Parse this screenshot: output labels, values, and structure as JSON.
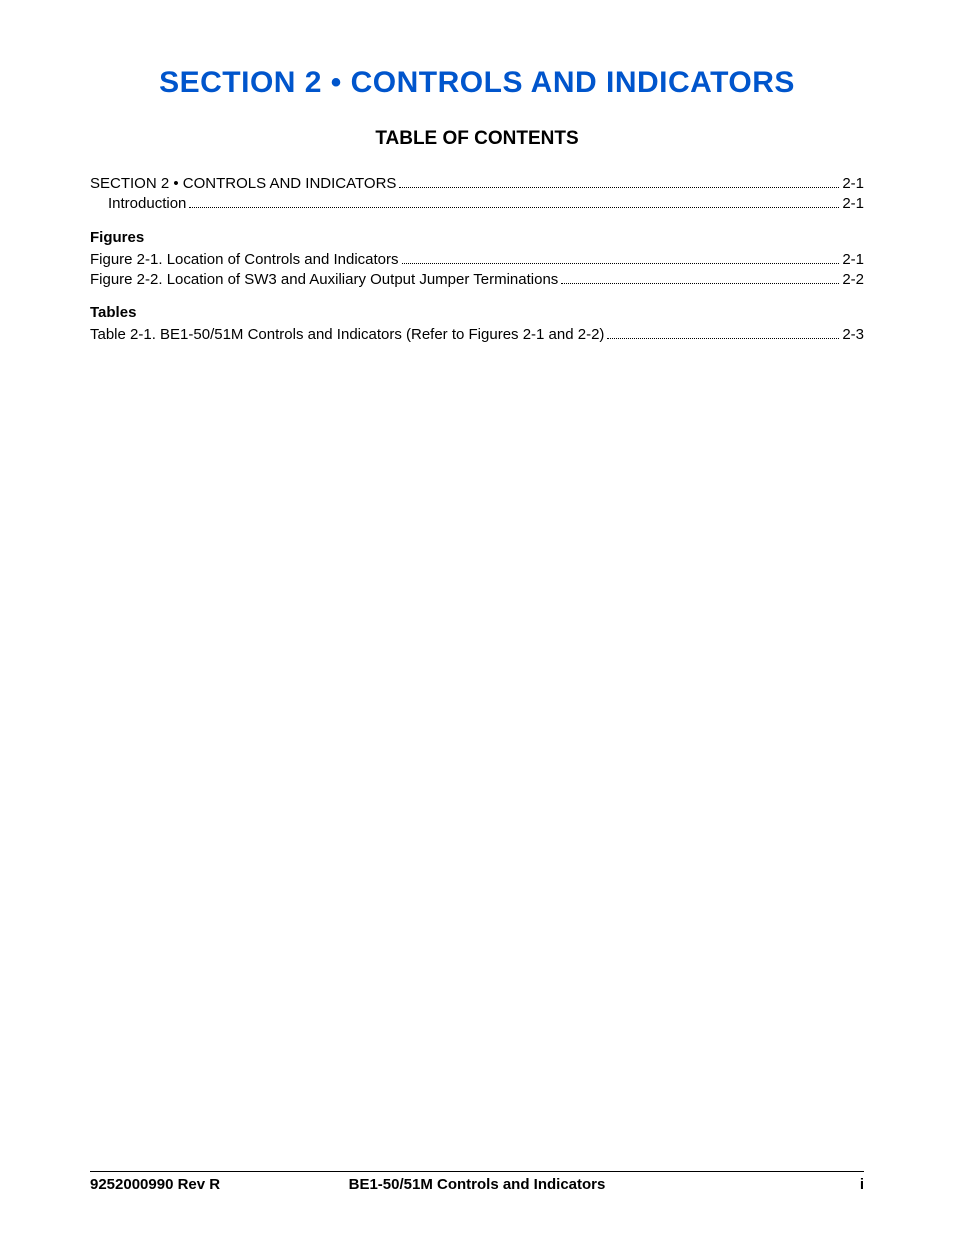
{
  "colors": {
    "title_color": "#0055cc",
    "text_color": "#000000",
    "background": "#ffffff",
    "rule_color": "#000000"
  },
  "typography": {
    "font_family": "Arial, Helvetica, sans-serif",
    "section_title_size_pt": 22,
    "toc_title_size_pt": 14,
    "body_size_pt": 11,
    "subheading_size_pt": 11,
    "footer_size_pt": 11
  },
  "section_title": "SECTION 2 • CONTROLS AND INDICATORS",
  "toc_title": "TABLE OF CONTENTS",
  "toc": {
    "main": [
      {
        "label": "SECTION 2 • CONTROLS AND INDICATORS",
        "page": "2-1",
        "indent": 0
      },
      {
        "label": "Introduction",
        "page": "2-1",
        "indent": 1
      }
    ],
    "figures_heading": "Figures",
    "figures": [
      {
        "label": "Figure 2-1. Location of Controls and Indicators",
        "page": "2-1",
        "indent": 0
      },
      {
        "label": "Figure 2-2. Location of SW3 and Auxiliary Output Jumper Terminations",
        "page": "2-2",
        "indent": 0
      }
    ],
    "tables_heading": "Tables",
    "tables": [
      {
        "label": "Table 2-1. BE1-50/51M Controls and Indicators (Refer to Figures 2-1 and 2-2)",
        "page": "2-3",
        "indent": 0
      }
    ]
  },
  "footer": {
    "left": "9252000990 Rev R",
    "center": "BE1-50/51M Controls and Indicators",
    "right": "i"
  }
}
